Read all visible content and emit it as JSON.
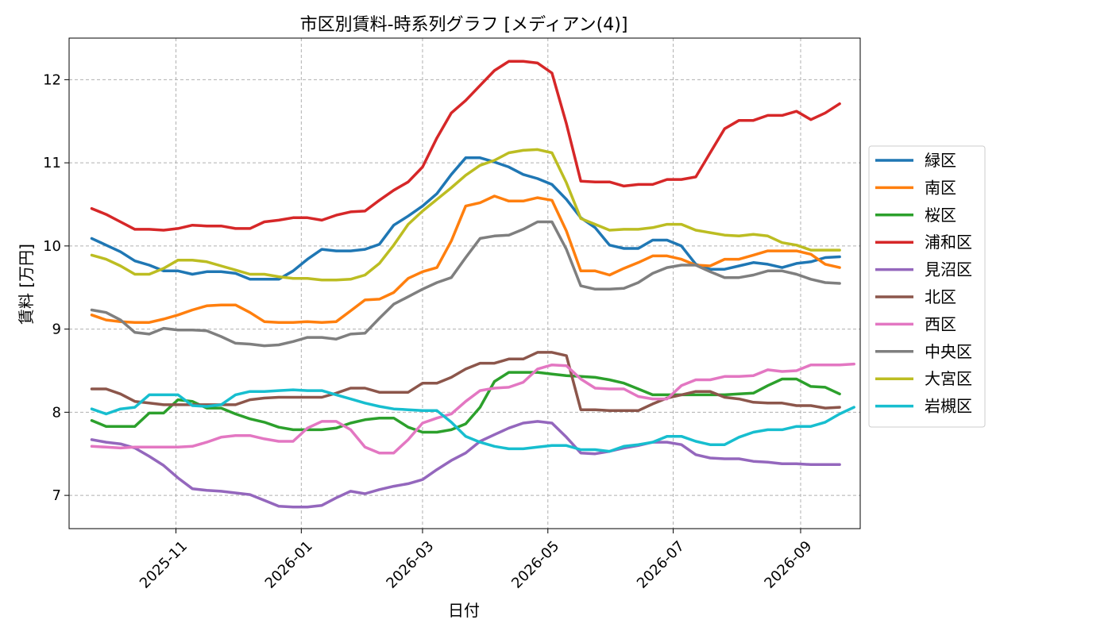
{
  "chart_data": {
    "type": "line",
    "title": "市区別賃料-時系列グラフ [メディアン(4)]",
    "xlabel": "日付",
    "ylabel": "賃料 [万円]",
    "x_start": "2025-09-21",
    "x_step_days": 7,
    "xlim": [
      "2025-09-10",
      "2026-09-30"
    ],
    "ylim": [
      6.6,
      12.5
    ],
    "xticks": [
      {
        "date": "2025-11-01",
        "label": "2025-11"
      },
      {
        "date": "2026-01-01",
        "label": "2026-01"
      },
      {
        "date": "2026-03-01",
        "label": "2026-03"
      },
      {
        "date": "2026-05-01",
        "label": "2026-05"
      },
      {
        "date": "2026-07-01",
        "label": "2026-07"
      },
      {
        "date": "2026-09-01",
        "label": "2026-09"
      }
    ],
    "yticks": [
      7,
      8,
      9,
      10,
      11,
      12
    ],
    "grid": true,
    "legend_position": "right",
    "series": [
      {
        "name": "緑区",
        "color": "#1f77b4",
        "values": [
          10.09,
          10.01,
          9.93,
          9.82,
          9.77,
          9.7,
          9.7,
          9.66,
          9.69,
          9.69,
          9.67,
          9.6,
          9.6,
          9.6,
          9.7,
          9.84,
          9.96,
          9.94,
          9.94,
          9.96,
          10.02,
          10.25,
          10.36,
          10.48,
          10.63,
          10.86,
          11.06,
          11.06,
          11.01,
          10.95,
          10.86,
          10.81,
          10.74,
          10.56,
          10.34,
          10.22,
          10.01,
          9.97,
          9.97,
          10.07,
          10.07,
          10.0,
          9.78,
          9.72,
          9.72,
          9.76,
          9.8,
          9.78,
          9.74,
          9.79,
          9.81,
          9.86,
          9.87
        ]
      },
      {
        "name": "南区",
        "color": "#ff7f0e",
        "values": [
          9.17,
          9.11,
          9.09,
          9.08,
          9.08,
          9.12,
          9.17,
          9.23,
          9.28,
          9.29,
          9.29,
          9.2,
          9.09,
          9.08,
          9.08,
          9.09,
          9.08,
          9.09,
          9.22,
          9.35,
          9.36,
          9.44,
          9.61,
          9.69,
          9.74,
          10.06,
          10.48,
          10.52,
          10.6,
          10.54,
          10.54,
          10.58,
          10.55,
          10.18,
          9.7,
          9.7,
          9.65,
          9.73,
          9.8,
          9.88,
          9.88,
          9.84,
          9.77,
          9.76,
          9.84,
          9.84,
          9.89,
          9.94,
          9.94,
          9.94,
          9.9,
          9.78,
          9.74
        ]
      },
      {
        "name": "桜区",
        "color": "#2ca02c",
        "values": [
          7.9,
          7.83,
          7.83,
          7.83,
          7.99,
          7.99,
          8.15,
          8.13,
          8.05,
          8.05,
          7.98,
          7.92,
          7.88,
          7.82,
          7.79,
          7.79,
          7.79,
          7.81,
          7.87,
          7.91,
          7.93,
          7.93,
          7.82,
          7.76,
          7.76,
          7.79,
          7.86,
          8.06,
          8.37,
          8.48,
          8.48,
          8.48,
          8.46,
          8.44,
          8.43,
          8.42,
          8.39,
          8.35,
          8.28,
          8.21,
          8.21,
          8.21,
          8.21,
          8.21,
          8.21,
          8.22,
          8.23,
          8.32,
          8.4,
          8.4,
          8.31,
          8.3,
          8.22
        ]
      },
      {
        "name": "浦和区",
        "color": "#d62728",
        "values": [
          10.45,
          10.38,
          10.29,
          10.2,
          10.2,
          10.19,
          10.21,
          10.25,
          10.24,
          10.24,
          10.21,
          10.21,
          10.29,
          10.31,
          10.34,
          10.34,
          10.31,
          10.37,
          10.41,
          10.42,
          10.55,
          10.67,
          10.77,
          10.95,
          11.3,
          11.6,
          11.75,
          11.93,
          12.11,
          12.22,
          12.22,
          12.2,
          12.08,
          11.47,
          10.78,
          10.77,
          10.77,
          10.72,
          10.74,
          10.74,
          10.8,
          10.8,
          10.83,
          11.12,
          11.41,
          11.51,
          11.51,
          11.57,
          11.57,
          11.62,
          11.52,
          11.6,
          11.71
        ]
      },
      {
        "name": "見沼区",
        "color": "#9467bd",
        "values": [
          7.67,
          7.64,
          7.62,
          7.57,
          7.47,
          7.36,
          7.21,
          7.08,
          7.06,
          7.05,
          7.03,
          7.01,
          6.94,
          6.87,
          6.86,
          6.86,
          6.88,
          6.97,
          7.05,
          7.02,
          7.07,
          7.11,
          7.14,
          7.19,
          7.31,
          7.42,
          7.51,
          7.65,
          7.73,
          7.81,
          7.87,
          7.89,
          7.87,
          7.7,
          7.51,
          7.5,
          7.53,
          7.57,
          7.6,
          7.64,
          7.64,
          7.61,
          7.49,
          7.45,
          7.44,
          7.44,
          7.41,
          7.4,
          7.38,
          7.38,
          7.37,
          7.37,
          7.37
        ]
      },
      {
        "name": "北区",
        "color": "#8c564b",
        "values": [
          8.28,
          8.28,
          8.22,
          8.13,
          8.11,
          8.09,
          8.09,
          8.09,
          8.09,
          8.09,
          8.09,
          8.15,
          8.17,
          8.18,
          8.18,
          8.18,
          8.18,
          8.23,
          8.29,
          8.29,
          8.24,
          8.24,
          8.24,
          8.35,
          8.35,
          8.42,
          8.52,
          8.59,
          8.59,
          8.64,
          8.64,
          8.72,
          8.72,
          8.68,
          8.03,
          8.03,
          8.02,
          8.02,
          8.02,
          8.1,
          8.17,
          8.21,
          8.25,
          8.25,
          8.18,
          8.16,
          8.12,
          8.11,
          8.11,
          8.08,
          8.08,
          8.05,
          8.06
        ]
      },
      {
        "name": "西区",
        "color": "#e377c2",
        "values": [
          7.59,
          7.58,
          7.57,
          7.58,
          7.58,
          7.58,
          7.58,
          7.59,
          7.64,
          7.7,
          7.72,
          7.72,
          7.68,
          7.65,
          7.65,
          7.81,
          7.89,
          7.89,
          7.79,
          7.58,
          7.51,
          7.51,
          7.67,
          7.87,
          7.93,
          7.98,
          8.13,
          8.26,
          8.29,
          8.3,
          8.36,
          8.52,
          8.57,
          8.56,
          8.4,
          8.29,
          8.28,
          8.28,
          8.19,
          8.16,
          8.16,
          8.32,
          8.39,
          8.39,
          8.43,
          8.43,
          8.44,
          8.51,
          8.49,
          8.5,
          8.57,
          8.57,
          8.57,
          8.58
        ]
      },
      {
        "name": "中央区",
        "color": "#7f7f7f",
        "values": [
          9.23,
          9.2,
          9.11,
          8.96,
          8.94,
          9.01,
          8.99,
          8.99,
          8.98,
          8.91,
          8.83,
          8.82,
          8.8,
          8.81,
          8.85,
          8.9,
          8.9,
          8.88,
          8.94,
          8.95,
          9.13,
          9.3,
          9.39,
          9.48,
          9.56,
          9.62,
          9.86,
          10.09,
          10.12,
          10.13,
          10.2,
          10.29,
          10.29,
          9.96,
          9.52,
          9.48,
          9.48,
          9.49,
          9.56,
          9.67,
          9.74,
          9.77,
          9.77,
          9.69,
          9.62,
          9.62,
          9.65,
          9.7,
          9.7,
          9.66,
          9.6,
          9.56,
          9.55
        ]
      },
      {
        "name": "大宮区",
        "color": "#bcbd22",
        "values": [
          9.89,
          9.84,
          9.76,
          9.66,
          9.66,
          9.73,
          9.83,
          9.83,
          9.81,
          9.76,
          9.71,
          9.66,
          9.66,
          9.63,
          9.61,
          9.61,
          9.59,
          9.59,
          9.6,
          9.65,
          9.79,
          10.01,
          10.26,
          10.42,
          10.56,
          10.7,
          10.85,
          10.97,
          11.03,
          11.12,
          11.15,
          11.16,
          11.12,
          10.76,
          10.33,
          10.26,
          10.19,
          10.2,
          10.2,
          10.22,
          10.26,
          10.26,
          10.19,
          10.16,
          10.13,
          10.12,
          10.14,
          10.12,
          10.04,
          10.01,
          9.95,
          9.95,
          9.95
        ]
      },
      {
        "name": "岩槻区",
        "color": "#17becf",
        "values": [
          8.04,
          7.98,
          8.04,
          8.06,
          8.21,
          8.21,
          8.21,
          8.08,
          8.07,
          8.09,
          8.21,
          8.25,
          8.25,
          8.26,
          8.27,
          8.26,
          8.26,
          8.21,
          8.16,
          8.11,
          8.07,
          8.04,
          8.03,
          8.02,
          8.02,
          7.88,
          7.71,
          7.64,
          7.59,
          7.56,
          7.56,
          7.58,
          7.6,
          7.6,
          7.55,
          7.55,
          7.53,
          7.59,
          7.61,
          7.64,
          7.71,
          7.71,
          7.65,
          7.61,
          7.61,
          7.7,
          7.76,
          7.79,
          7.79,
          7.83,
          7.83,
          7.88,
          7.98,
          8.06
        ]
      }
    ]
  }
}
